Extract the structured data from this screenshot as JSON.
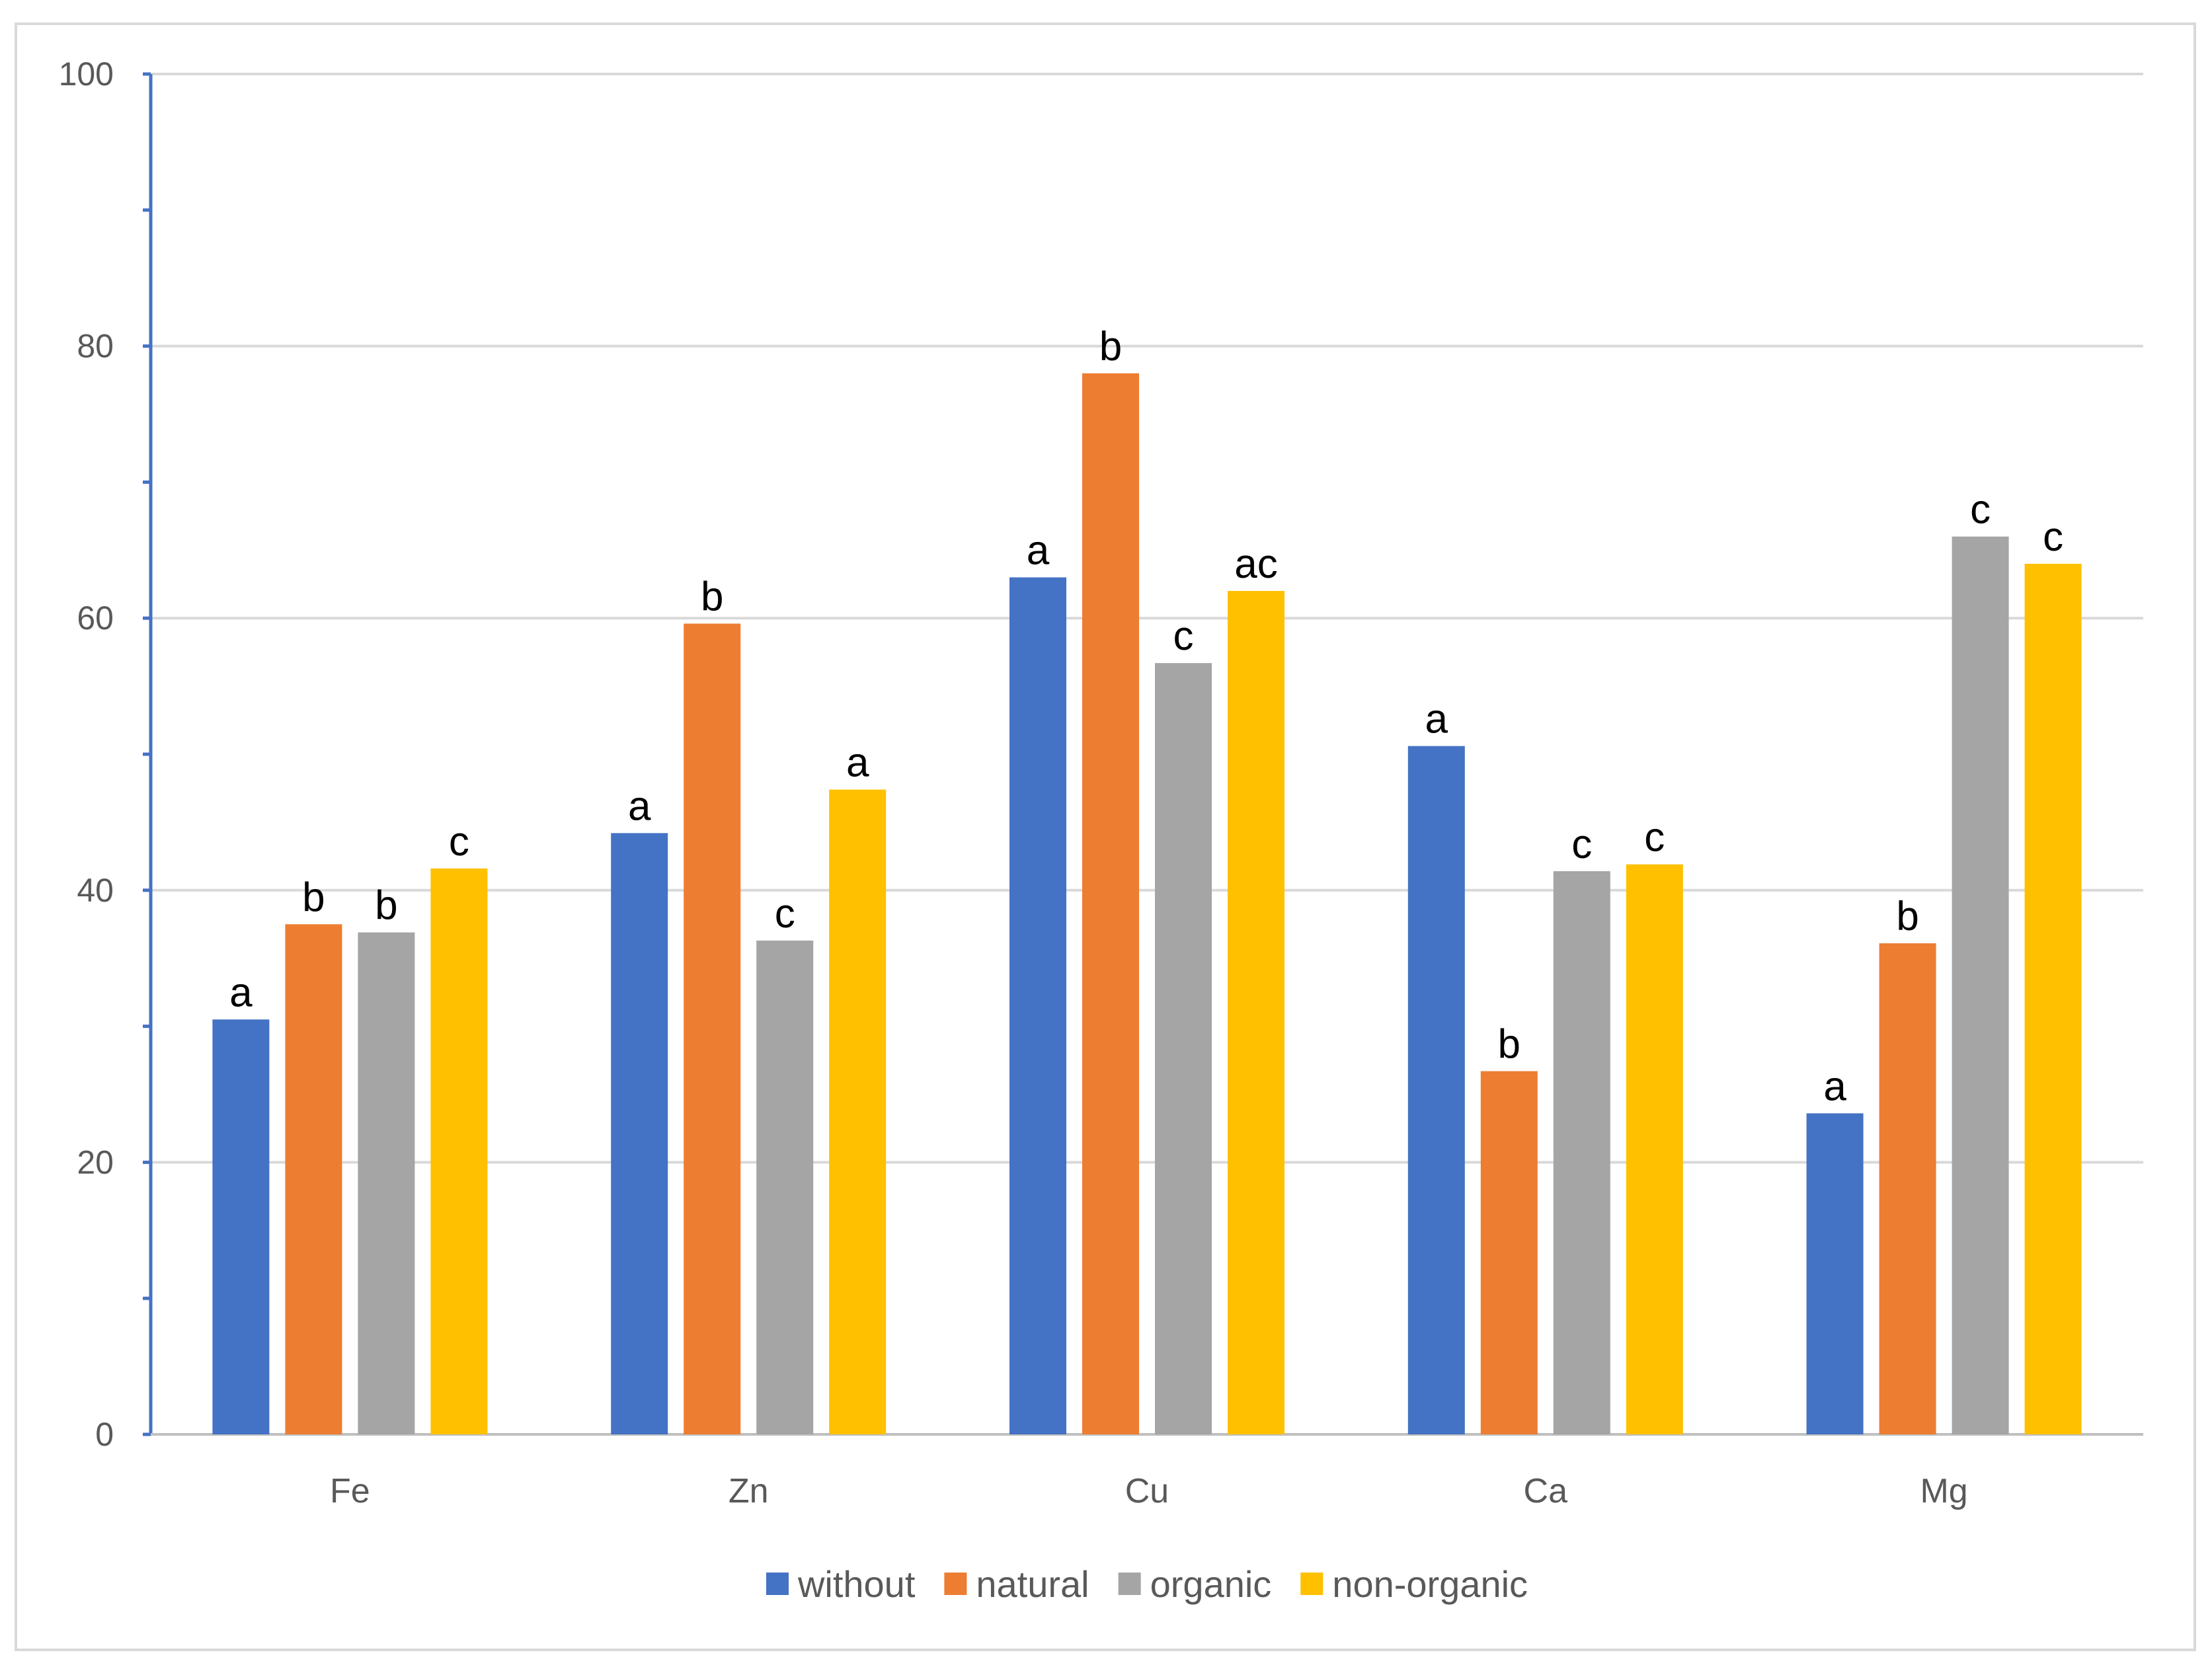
{
  "chart_data": {
    "type": "bar",
    "title": "",
    "xlabel": "",
    "ylabel": "",
    "ylim": [
      0,
      100
    ],
    "yticks": [
      0,
      20,
      40,
      60,
      80,
      100
    ],
    "grid": true,
    "legend_position": "bottom",
    "categories": [
      "Fe",
      "Zn",
      "Cu",
      "Ca",
      "Mg"
    ],
    "series": [
      {
        "name": "without",
        "color": "#4472c4",
        "values": [
          30.5,
          44.2,
          63.0,
          50.6,
          23.6
        ],
        "labels": [
          "a",
          "a",
          "a",
          "a",
          "a"
        ]
      },
      {
        "name": "natural",
        "color": "#ed7d31",
        "values": [
          37.5,
          59.6,
          78.0,
          26.7,
          36.1
        ],
        "labels": [
          "b",
          "b",
          "b",
          "b",
          "b"
        ]
      },
      {
        "name": "organic",
        "color": "#a5a5a5",
        "values": [
          36.9,
          36.3,
          56.7,
          41.4,
          66.0
        ],
        "labels": [
          "b",
          "c",
          "c",
          "c",
          "c"
        ]
      },
      {
        "name": "non-organic",
        "color": "#ffc000",
        "values": [
          41.6,
          47.4,
          62.0,
          41.9,
          64.0
        ],
        "labels": [
          "c",
          "a",
          "ac",
          "c",
          "c"
        ]
      }
    ]
  }
}
